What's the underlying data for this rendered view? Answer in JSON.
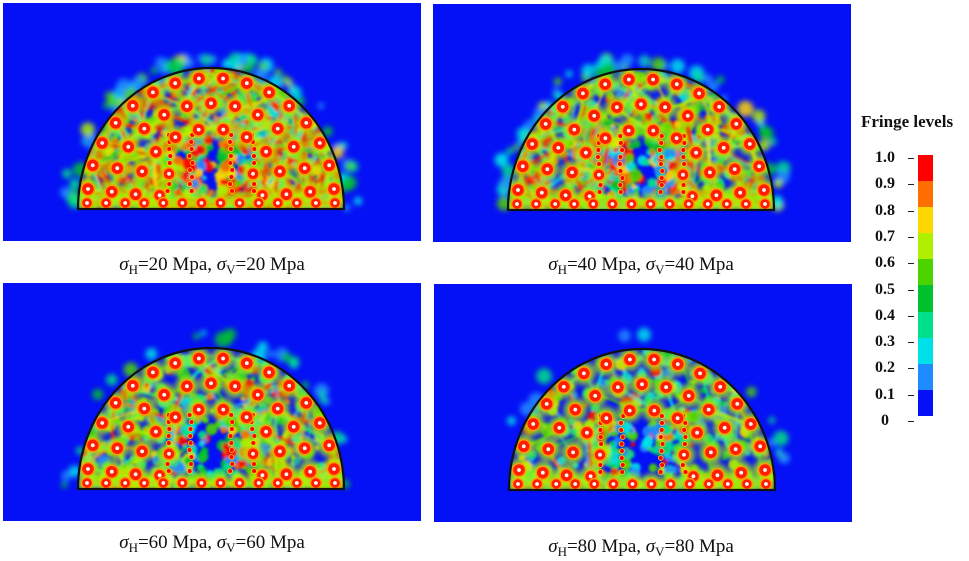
{
  "chart_data": {
    "type": "heatmap",
    "panels": [
      {
        "sigma": "σ",
        "h_sub": "H",
        "h_text": "=20 Mpa, ",
        "v_sub": "V",
        "v_text": "=20 Mpa"
      },
      {
        "sigma": "σ",
        "h_sub": "H",
        "h_text": "=40 Mpa, ",
        "v_sub": "V",
        "v_text": "=40 Mpa"
      },
      {
        "sigma": "σ",
        "h_sub": "H",
        "h_text": "=60 Mpa, ",
        "v_sub": "V",
        "v_text": "=60 Mpa"
      },
      {
        "sigma": "σ",
        "h_sub": "H",
        "h_text": "=80 Mpa, ",
        "v_sub": "V",
        "v_text": "=80 Mpa"
      }
    ],
    "colorbar": {
      "title": "Fringe levels",
      "range": [
        0,
        1.0
      ],
      "ticks": [
        "1.0",
        "0.9",
        "0.8",
        "0.7",
        "0.6",
        "0.5",
        "0.4",
        "0.3",
        "0.2",
        "0.1",
        "0"
      ],
      "colors": [
        "#ff0000",
        "#ff6e00",
        "#ffd700",
        "#aef000",
        "#4cd400",
        "#00c22e",
        "#00e08a",
        "#00e0e8",
        "#1e8cff",
        "#0410f5"
      ]
    }
  }
}
